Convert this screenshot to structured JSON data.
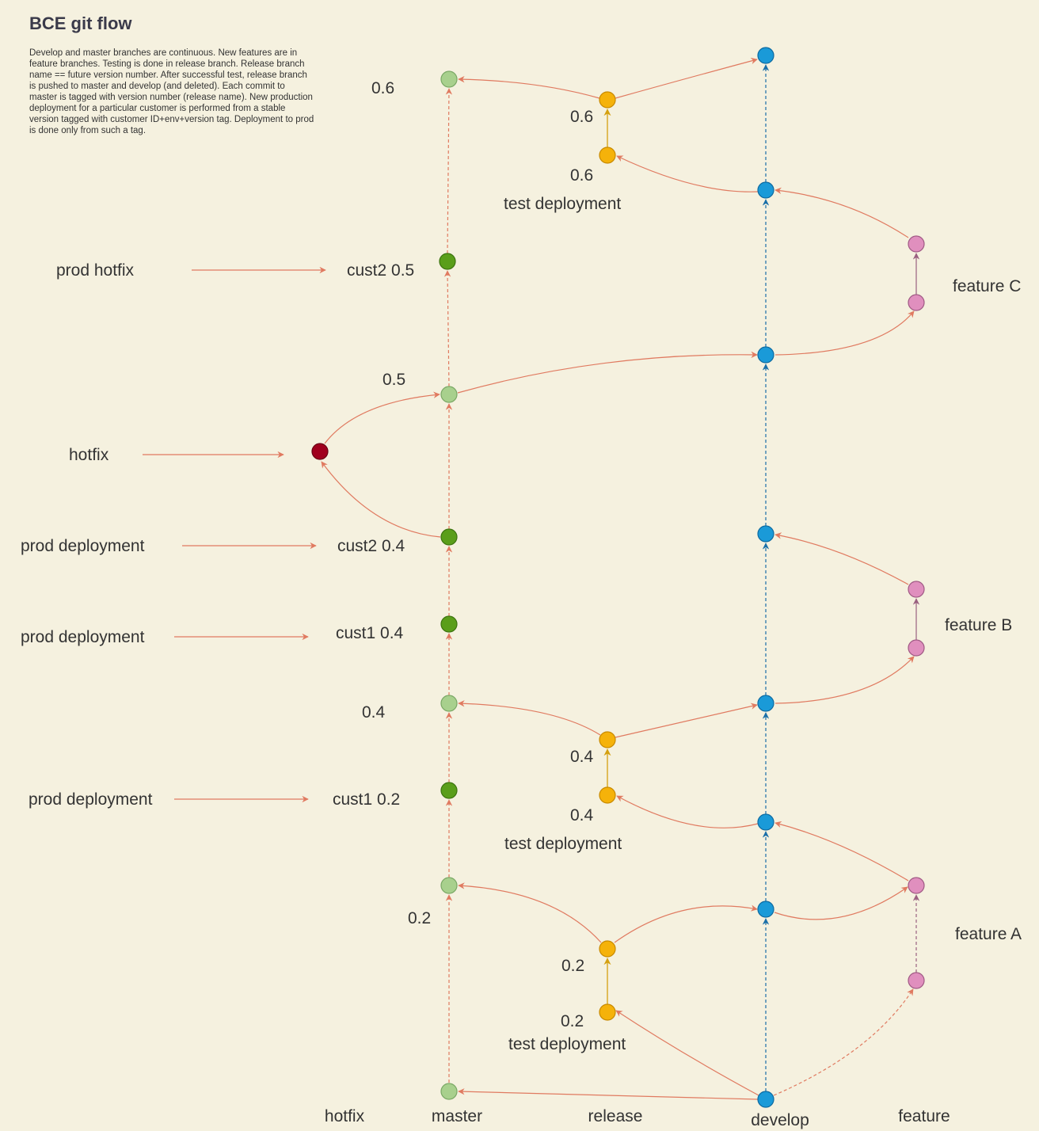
{
  "title": "BCE git flow",
  "description": "Develop and master branches are continuous. New features are in feature branches. Testing is done in release branch. Release branch name == future version number.  After successful test, release branch is pushed to master and develop (and  deleted). Each commit to master is tagged with version number (release name). New production deployment for a particular customer is performed  from a stable version  tagged with customer ID+env+version tag. Deployment to prod is done only  from such a tag.",
  "lanes": {
    "hotfix": "hotfix",
    "master": "master",
    "release": "release",
    "develop": "develop",
    "feature": "feature"
  },
  "features": {
    "a": "feature A",
    "b": "feature B",
    "c": "feature C"
  },
  "annotations": {
    "prod_hotfix": "prod hotfix",
    "hotfix": "hotfix",
    "prod_deployment_1": "prod deployment",
    "prod_deployment_2": "prod deployment",
    "prod_deployment_3": "prod deployment"
  },
  "master_tags": {
    "v06": "0.6",
    "cust2_05": "cust2 0.5",
    "v05": "0.5",
    "cust2_04": "cust2 0.4",
    "cust1_04": "cust1 0.4",
    "v04": "0.4",
    "cust1_02": "cust1 0.2",
    "v02": "0.2"
  },
  "release_tags": {
    "r06_top": "0.6",
    "r06_bottom": "0.6",
    "r04_top": "0.4",
    "r04_bottom": "0.4",
    "r02_top": "0.2",
    "r02_bottom": "0.2",
    "test_deployment_1": "test deployment",
    "test_deployment_2": "test deployment",
    "test_deployment_3": "test deployment"
  },
  "colors": {
    "background": "#f5f1df",
    "arrow": "#e07a60",
    "master_tag_node": "#a8d08d",
    "master_prod_node": "#5a9e1a",
    "release_node": "#f5b20a",
    "develop_node": "#1a9ad8",
    "feature_node": "#e08fbe",
    "hotfix_node": "#a0001e",
    "develop_line": "#1a6fa8",
    "release_line": "#d4a010",
    "feature_line": "#9a6080"
  }
}
